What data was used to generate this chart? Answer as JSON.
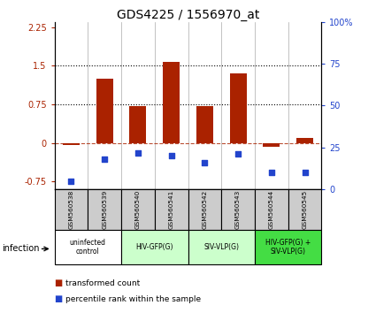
{
  "title": "GDS4225 / 1556970_at",
  "samples": [
    "GSM560538",
    "GSM560539",
    "GSM560540",
    "GSM560541",
    "GSM560542",
    "GSM560543",
    "GSM560544",
    "GSM560545"
  ],
  "transformed_count": [
    -0.04,
    1.25,
    0.72,
    1.58,
    0.72,
    1.35,
    -0.07,
    0.1
  ],
  "percentile_rank": [
    5,
    18,
    22,
    20,
    16,
    21,
    10,
    10
  ],
  "ylim_left": [
    -0.9,
    2.35
  ],
  "ylim_right": [
    0,
    100
  ],
  "yticks_left": [
    -0.75,
    0,
    0.75,
    1.5,
    2.25
  ],
  "yticks_right": [
    0,
    25,
    50,
    75,
    100
  ],
  "bar_color": "#aa2200",
  "dot_color": "#2244cc",
  "bar_width": 0.5,
  "groups": [
    {
      "label": "uninfected\ncontrol",
      "start": 0,
      "end": 2,
      "color": "#ffffff"
    },
    {
      "label": "HIV-GFP(G)",
      "start": 2,
      "end": 4,
      "color": "#ccffcc"
    },
    {
      "label": "SIV-VLP(G)",
      "start": 4,
      "end": 6,
      "color": "#ccffcc"
    },
    {
      "label": "HIV-GFP(G) +\nSIV-VLP(G)",
      "start": 6,
      "end": 8,
      "color": "#44dd44"
    }
  ],
  "infection_label": "infection",
  "legend_red": "transformed count",
  "legend_blue": "percentile rank within the sample",
  "bg_color": "#ffffff",
  "sample_box_color": "#cccccc",
  "title_fontsize": 10,
  "tick_fontsize": 7,
  "label_fontsize": 7
}
